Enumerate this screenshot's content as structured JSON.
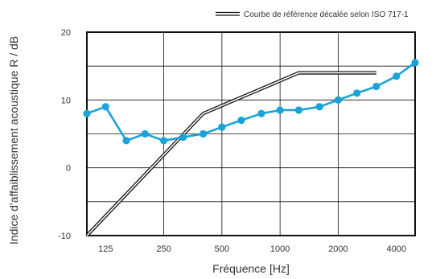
{
  "chart_data": {
    "type": "line",
    "xlabel": "Fréquence [Hz]",
    "ylabel": "Indice d'affaiblissement acoustique R / dB",
    "x_scale": "log",
    "xlim": [
      100,
      5000
    ],
    "ylim": [
      -10,
      20
    ],
    "x_ticks": [
      {
        "value": 125,
        "label": "125"
      },
      {
        "value": 250,
        "label": "250"
      },
      {
        "value": 500,
        "label": "500"
      },
      {
        "value": 1000,
        "label": "1000"
      },
      {
        "value": 2000,
        "label": "2000"
      },
      {
        "value": 4000,
        "label": "4000"
      }
    ],
    "y_ticks": [
      {
        "value": 20,
        "label": "20"
      },
      {
        "value": 10,
        "label": "10"
      },
      {
        "value": 0,
        "label": "0"
      },
      {
        "value": -10,
        "label": "-10"
      }
    ],
    "y_grid": [
      20,
      15,
      10,
      5,
      0,
      -5,
      -10
    ],
    "x_grid": [
      250,
      500,
      1000,
      2000
    ],
    "grid": true,
    "legend_position": "top-right",
    "series": [
      {
        "name": "",
        "color": "#1aa3d9",
        "marker": "circle",
        "x": [
          100,
          125,
          160,
          200,
          250,
          315,
          400,
          500,
          630,
          800,
          1000,
          1250,
          1600,
          2000,
          2500,
          3150,
          4000,
          5000
        ],
        "y": [
          8,
          9,
          4,
          5,
          4,
          4.5,
          5,
          6,
          7,
          8,
          8.5,
          8.5,
          9,
          10,
          11,
          12,
          13.5,
          15.5
        ]
      },
      {
        "name": "Courbe de référence décalée selon ISO 717-1",
        "color": "#111111",
        "style": "double-line",
        "x": [
          100,
          400,
          1250,
          3150
        ],
        "y": [
          -10,
          8,
          14,
          14
        ]
      }
    ]
  }
}
